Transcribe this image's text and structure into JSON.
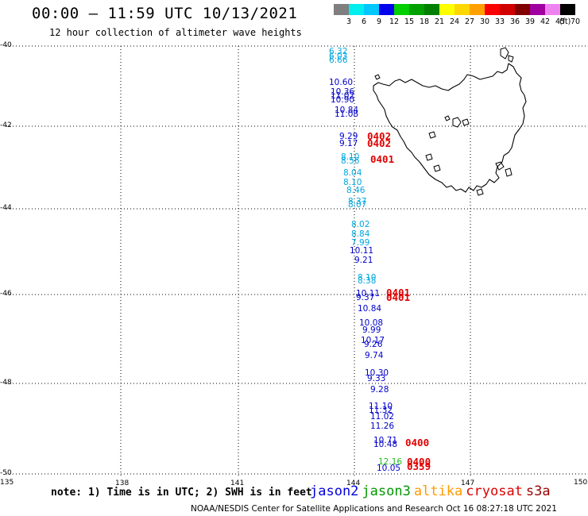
{
  "header": {
    "title": "00:00 – 11:59 UTC 10/13/2021",
    "subtitle": "12 hour collection of altimeter wave heights"
  },
  "colorbar": {
    "units": "(ft)",
    "levels": [
      "3",
      "6",
      "9",
      "12",
      "15",
      "18",
      "21",
      "24",
      "27",
      "30",
      "33",
      "36",
      "39",
      "42",
      "45",
      "70"
    ],
    "colors": [
      "#7f7f7f",
      "#00eeee",
      "#00c8ff",
      "#0000ee",
      "#00d000",
      "#00a000",
      "#008000",
      "#ffff00",
      "#ffd700",
      "#ffa000",
      "#ff0000",
      "#d00000",
      "#800000",
      "#a000a0",
      "#ee82ee",
      "#000000"
    ]
  },
  "map": {
    "lat_labels": [
      "-40",
      "-42",
      "-44",
      "-46",
      "-48",
      "-50"
    ],
    "lon_labels": [
      "135",
      "138",
      "141",
      "144",
      "147",
      "150"
    ],
    "wave_heights": [
      {
        "text": "6.32",
        "color": "#00a8e0"
      },
      {
        "text": "6.03",
        "color": "#00a8e0"
      },
      {
        "text": "6.66",
        "color": "#00a8e0"
      },
      {
        "text": "10.60",
        "color": "#0000cc"
      },
      {
        "text": "10.36",
        "color": "#0000cc"
      },
      {
        "text": "11.02",
        "color": "#0000cc"
      },
      {
        "text": "10.90",
        "color": "#0000cc"
      },
      {
        "text": "10.84",
        "color": "#0000cc"
      },
      {
        "text": "11.08",
        "color": "#0000cc"
      },
      {
        "text": "9.29",
        "color": "#0000cc"
      },
      {
        "text": "9.17",
        "color": "#0000cc"
      },
      {
        "text": "8.10",
        "color": "#00a8e0"
      },
      {
        "text": "8.56",
        "color": "#00a8e0"
      },
      {
        "text": "8.04",
        "color": "#00a8e0"
      },
      {
        "text": "8.10",
        "color": "#00a8e0"
      },
      {
        "text": "8.46",
        "color": "#00a8e0"
      },
      {
        "text": "8.37",
        "color": "#00a8e0"
      },
      {
        "text": "8.07",
        "color": "#00a8e0"
      },
      {
        "text": "8.02",
        "color": "#00a8e0"
      },
      {
        "text": "8.84",
        "color": "#00a8e0"
      },
      {
        "text": "7.99",
        "color": "#00a8e0"
      },
      {
        "text": "10.11",
        "color": "#0000cc"
      },
      {
        "text": "9.21",
        "color": "#0000cc"
      },
      {
        "text": "8.10",
        "color": "#00a8e0"
      },
      {
        "text": "8.38",
        "color": "#00a8e0"
      },
      {
        "text": "10.11",
        "color": "#0000cc"
      },
      {
        "text": "9.37",
        "color": "#0000cc"
      },
      {
        "text": "10.84",
        "color": "#0000cc"
      },
      {
        "text": "10.08",
        "color": "#0000cc"
      },
      {
        "text": "9.99",
        "color": "#0000cc"
      },
      {
        "text": "10.17",
        "color": "#0000cc"
      },
      {
        "text": "9.26",
        "color": "#0000cc"
      },
      {
        "text": "9.74",
        "color": "#0000cc"
      },
      {
        "text": "10.30",
        "color": "#0000cc"
      },
      {
        "text": "9.33",
        "color": "#0000cc"
      },
      {
        "text": "9.28",
        "color": "#0000cc"
      },
      {
        "text": "11.10",
        "color": "#0000cc"
      },
      {
        "text": "11.32",
        "color": "#0000cc"
      },
      {
        "text": "11.02",
        "color": "#0000cc"
      },
      {
        "text": "11.26",
        "color": "#0000cc"
      },
      {
        "text": "10.71",
        "color": "#0000cc"
      },
      {
        "text": "10.48",
        "color": "#0000cc"
      },
      {
        "text": "12.16",
        "color": "#22bb22"
      },
      {
        "text": "10.05",
        "color": "#0000cc"
      }
    ],
    "pass_times": [
      "0402",
      "0402",
      "0401",
      "0401",
      "0401",
      "0400",
      "0400",
      "0359"
    ]
  },
  "footer": {
    "note": "note: 1) Time is in UTC; 2) SWH is in feet",
    "satellites": [
      {
        "name": "jason2",
        "color": "#0000dd"
      },
      {
        "name": "jason3",
        "color": "#009900"
      },
      {
        "name": "altika",
        "color": "#ff9900"
      },
      {
        "name": "cryosat",
        "color": "#dd0000"
      },
      {
        "name": "s3a",
        "color": "#990000"
      }
    ],
    "credit": "NOAA/NESDIS Center for Satellite Applications and Research   Oct 16 08:27:18 UTC 2021"
  }
}
